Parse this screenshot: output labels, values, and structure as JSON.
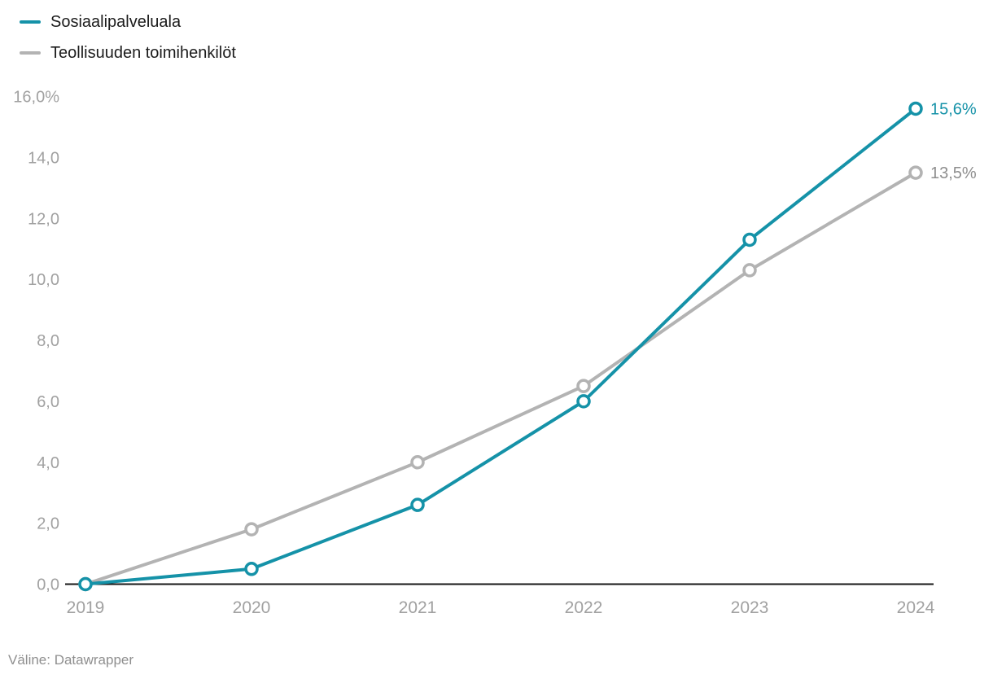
{
  "legend": {
    "items": [
      {
        "label": "Sosiaalipalveluala",
        "color": "#1592a8"
      },
      {
        "label": "Teollisuuden toimihenkilöt",
        "color": "#b3b3b3"
      }
    ]
  },
  "footer": {
    "text": "Väline: Datawrapper"
  },
  "colors": {
    "background": "#ffffff",
    "axis_line": "#161616",
    "axis_text": "#a1a1a1",
    "legend_text": "#1c1c1c",
    "footer_text": "#8f8f8f",
    "accent_teal": "#1592a8",
    "accent_gray": "#b3b3b3"
  },
  "chart_data": {
    "type": "line",
    "x": [
      2019,
      2020,
      2021,
      2022,
      2023,
      2024
    ],
    "x_tick_labels": [
      "2019",
      "2020",
      "2021",
      "2022",
      "2023",
      "2024"
    ],
    "series": [
      {
        "name": "Sosiaalipalveluala",
        "color": "#1592a8",
        "values": [
          0.0,
          0.5,
          2.6,
          6.0,
          11.3,
          15.6
        ],
        "end_label": "15,6%",
        "end_label_color": "#1592a8"
      },
      {
        "name": "Teollisuuden toimihenkilöt",
        "color": "#b3b3b3",
        "values": [
          0.0,
          1.8,
          4.0,
          6.5,
          10.3,
          13.5
        ],
        "end_label": "13,5%",
        "end_label_color": "#8e8e8e"
      }
    ],
    "ylim": [
      0,
      16
    ],
    "y_ticks": [
      0,
      2,
      4,
      6,
      8,
      10,
      12,
      14,
      16
    ],
    "y_tick_labels": [
      "0,0",
      "2,0",
      "4,0",
      "6,0",
      "8,0",
      "10,0",
      "12,0",
      "14,0",
      "16,0%"
    ],
    "grid": false,
    "legend_position": "top-left",
    "marker": "open-circle",
    "title": "",
    "xlabel": "",
    "ylabel": ""
  }
}
